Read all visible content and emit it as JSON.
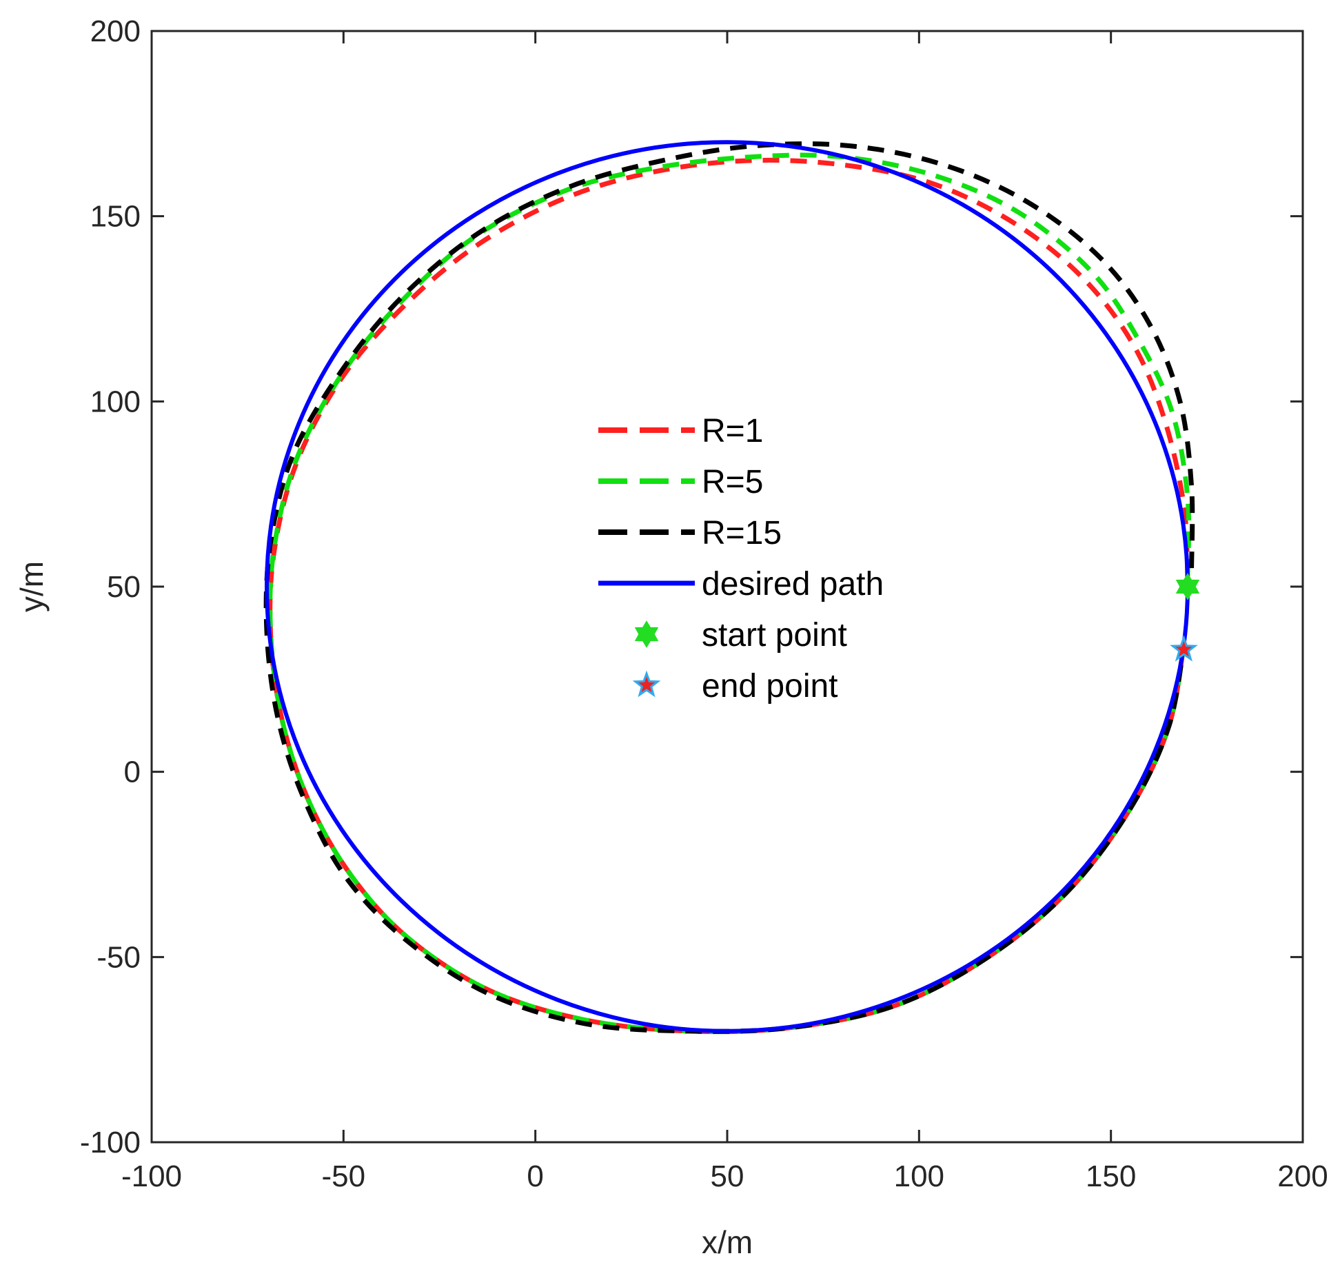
{
  "chart_data": {
    "type": "line",
    "title": "",
    "xlabel": "x/m",
    "ylabel": "y/m",
    "xlim": [
      -100,
      200
    ],
    "ylim": [
      -100,
      200
    ],
    "xticks": [
      -100,
      -50,
      0,
      50,
      100,
      150,
      200
    ],
    "yticks": [
      -100,
      -50,
      0,
      50,
      100,
      150,
      200
    ],
    "grid": false,
    "legend_position": "center",
    "series": [
      {
        "name": "R=1",
        "style": "dashed",
        "color": "#ff2020",
        "points": [
          [
            170,
            52
          ],
          [
            169,
            72
          ],
          [
            164,
            95
          ],
          [
            156,
            115
          ],
          [
            143,
            133
          ],
          [
            125,
            148
          ],
          [
            103,
            159
          ],
          [
            79,
            164
          ],
          [
            55,
            165
          ],
          [
            31,
            162
          ],
          [
            8,
            155
          ],
          [
            -14,
            143
          ],
          [
            -33,
            127
          ],
          [
            -50,
            107
          ],
          [
            -62,
            84
          ],
          [
            -68,
            60
          ],
          [
            -69,
            37
          ],
          [
            -66,
            14
          ],
          [
            -59,
            -8
          ],
          [
            -48,
            -28
          ],
          [
            -33,
            -45
          ],
          [
            -12,
            -59
          ],
          [
            13,
            -67
          ],
          [
            40,
            -70
          ],
          [
            67,
            -69
          ],
          [
            94,
            -63
          ],
          [
            118,
            -50
          ],
          [
            139,
            -32
          ],
          [
            155,
            -10
          ],
          [
            165,
            12
          ],
          [
            169,
            34
          ]
        ]
      },
      {
        "name": "R=5",
        "style": "dashed",
        "color": "#10e010",
        "points": [
          [
            170,
            53
          ],
          [
            170,
            74
          ],
          [
            166,
            97
          ],
          [
            157,
            117
          ],
          [
            145,
            135
          ],
          [
            126,
            151
          ],
          [
            104,
            161
          ],
          [
            80,
            166
          ],
          [
            56,
            166
          ],
          [
            31,
            163
          ],
          [
            8,
            157
          ],
          [
            -15,
            145
          ],
          [
            -34,
            128
          ],
          [
            -50,
            108
          ],
          [
            -62,
            85
          ],
          [
            -68,
            61
          ],
          [
            -69,
            38
          ],
          [
            -66,
            14
          ],
          [
            -59,
            -8
          ],
          [
            -48,
            -28
          ],
          [
            -33,
            -45
          ],
          [
            -12,
            -59
          ],
          [
            13,
            -67
          ],
          [
            40,
            -70
          ],
          [
            67,
            -69
          ],
          [
            94,
            -63
          ],
          [
            118,
            -50
          ],
          [
            139,
            -32
          ],
          [
            155,
            -10
          ],
          [
            165,
            12
          ],
          [
            169,
            34
          ]
        ]
      },
      {
        "name": "R=15",
        "style": "dashed",
        "color": "#000000",
        "points": [
          [
            171,
            55
          ],
          [
            171,
            77
          ],
          [
            168,
            100
          ],
          [
            160,
            121
          ],
          [
            147,
            139
          ],
          [
            128,
            154
          ],
          [
            106,
            164
          ],
          [
            82,
            169
          ],
          [
            57,
            169
          ],
          [
            33,
            165
          ],
          [
            9,
            158
          ],
          [
            -14,
            146
          ],
          [
            -34,
            129
          ],
          [
            -50,
            109
          ],
          [
            -63,
            86
          ],
          [
            -69,
            62
          ],
          [
            -70,
            38
          ],
          [
            -67,
            14
          ],
          [
            -60,
            -8
          ],
          [
            -49,
            -29
          ],
          [
            -33,
            -46
          ],
          [
            -12,
            -60
          ],
          [
            13,
            -68
          ],
          [
            40,
            -70
          ],
          [
            67,
            -69
          ],
          [
            94,
            -63
          ],
          [
            118,
            -50
          ],
          [
            139,
            -32
          ],
          [
            155,
            -10
          ],
          [
            165,
            12
          ],
          [
            169,
            34
          ]
        ]
      },
      {
        "name": "desired path",
        "style": "solid",
        "color": "#0000ff",
        "center": [
          50,
          50
        ],
        "radius": 120
      }
    ],
    "markers": [
      {
        "name": "start point",
        "x": 170,
        "y": 50,
        "shape": "hexagram",
        "color": "#22dd22",
        "edge": "#22dd22"
      },
      {
        "name": "end point",
        "x": 169,
        "y": 33,
        "shape": "pentagram",
        "color": "#ee2222",
        "edge": "#33aaee"
      }
    ],
    "legend": [
      {
        "label": "R=1",
        "kind": "dashed",
        "color": "#ff2020"
      },
      {
        "label": "R=5",
        "kind": "dashed",
        "color": "#10e010"
      },
      {
        "label": "R=15",
        "kind": "dashed",
        "color": "#000000"
      },
      {
        "label": "desired path",
        "kind": "solid",
        "color": "#0000ff"
      },
      {
        "label": "start point",
        "kind": "hexagram",
        "color": "#22dd22",
        "edge": "#22dd22"
      },
      {
        "label": "end point",
        "kind": "pentagram",
        "color": "#ee2222",
        "edge": "#33aaee"
      }
    ]
  }
}
